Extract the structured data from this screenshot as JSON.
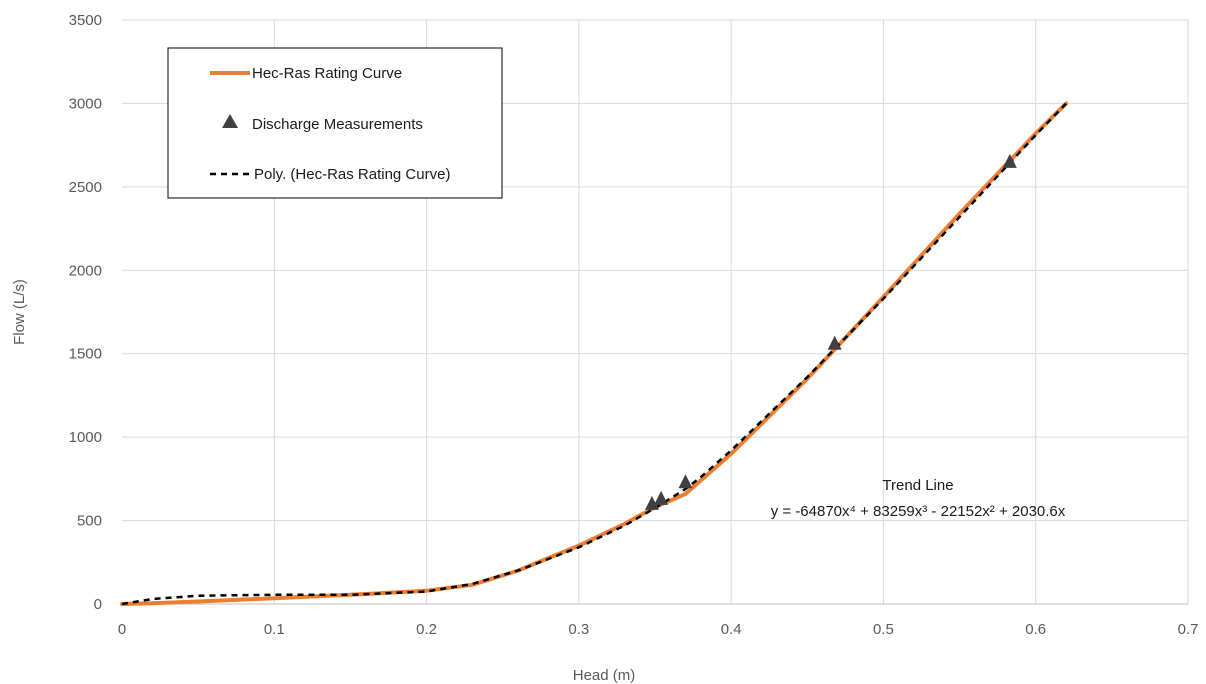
{
  "chart_data": {
    "type": "scatter",
    "title": "",
    "xlabel": "Head (m)",
    "ylabel": "Flow (L/s)",
    "xlim": [
      0,
      0.7
    ],
    "ylim": [
      0,
      3500
    ],
    "x_ticks": [
      0,
      0.1,
      0.2,
      0.3,
      0.4,
      0.5,
      0.6,
      0.7
    ],
    "x_tick_labels": [
      "0",
      "0.1",
      "0.2",
      "0.3",
      "0.4",
      "0.5",
      "0.6",
      "0.7"
    ],
    "y_ticks": [
      0,
      500,
      1000,
      1500,
      2000,
      2500,
      3000,
      3500
    ],
    "y_tick_labels": [
      "0",
      "500",
      "1000",
      "1500",
      "2000",
      "2500",
      "3000",
      "3500"
    ],
    "grid": true,
    "legend_position": "top-left",
    "series": [
      {
        "name": "Hec-Ras Rating Curve",
        "kind": "line",
        "color": "#ED7D31",
        "x": [
          0,
          0.02,
          0.05,
          0.1,
          0.15,
          0.2,
          0.23,
          0.26,
          0.3,
          0.33,
          0.35,
          0.37,
          0.38,
          0.4,
          0.45,
          0.5,
          0.55,
          0.6,
          0.62
        ],
        "y": [
          0,
          5,
          15,
          35,
          55,
          80,
          115,
          200,
          350,
          480,
          580,
          660,
          740,
          900,
          1350,
          1840,
          2340,
          2820,
          3000
        ]
      },
      {
        "name": "Discharge Measurements",
        "kind": "marker",
        "marker": "triangle",
        "color": "#404040",
        "x": [
          0.348,
          0.354,
          0.37,
          0.468,
          0.583
        ],
        "y": [
          600,
          630,
          730,
          1560,
          2650
        ]
      },
      {
        "name": "Poly. (Hec-Ras Rating Curve)",
        "kind": "dashed-line",
        "color": "#000000",
        "x": [
          0,
          0.02,
          0.05,
          0.1,
          0.15,
          0.2,
          0.23,
          0.26,
          0.3,
          0.33,
          0.35,
          0.37,
          0.38,
          0.4,
          0.45,
          0.5,
          0.55,
          0.6,
          0.62
        ],
        "y": [
          0,
          30,
          50,
          55,
          55,
          75,
          120,
          200,
          340,
          470,
          575,
          690,
          760,
          920,
          1360,
          1830,
          2320,
          2810,
          3000
        ]
      }
    ],
    "annotation": {
      "title": "Trend Line",
      "equation": "y = -64870x⁴ + 83259x³ - 22152x² + 2030.6x"
    }
  }
}
